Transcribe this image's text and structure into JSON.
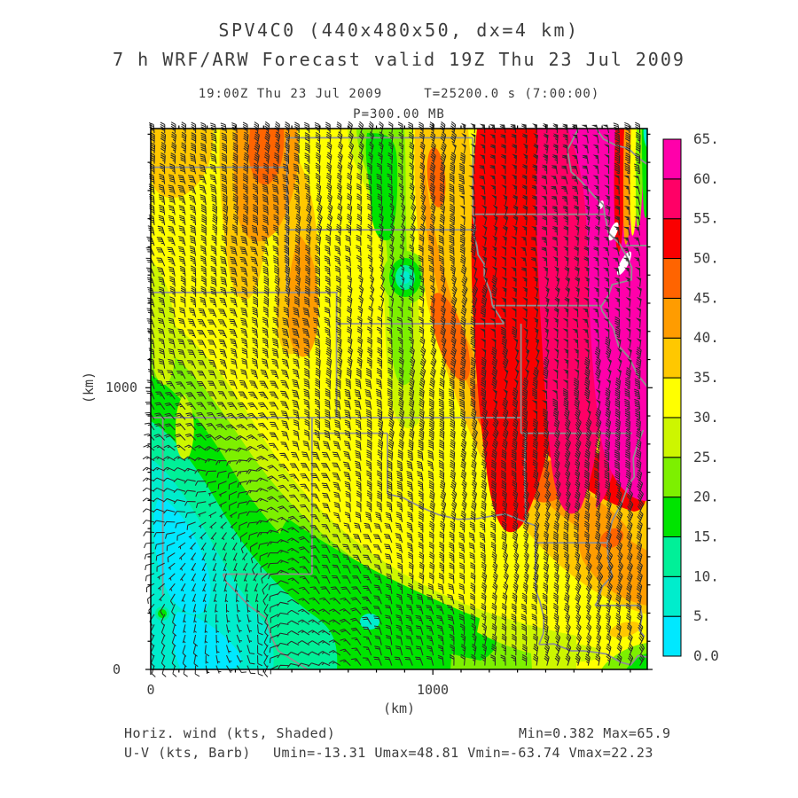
{
  "header": {
    "title": "SPV4C0 (440x480x50, dx=4 km)",
    "subtitle": "7 h WRF/ARW Forecast valid 19Z Thu 23 Jul 2009",
    "time_line": "19:00Z Thu 23 Jul 2009     T=25200.0 s (7:00:00)",
    "level_line": "P=300.00 MB"
  },
  "footer": {
    "shaded_label": "Horiz. wind (kts, Shaded)",
    "shaded_stats": "Min=0.382 Max=65.9",
    "barb_label": "U-V (kts, Barb)",
    "barb_stats": "Umin=-13.31 Umax=48.81 Vmin=-63.74 Vmax=22.23"
  },
  "chart_data": {
    "type": "heatmap",
    "title": "SPV4C0 (440x480x50, dx=4 km)",
    "subtitle": "7 h WRF/ARW Forecast valid 19Z Thu 23 Jul 2009",
    "field": "Horizontal wind speed (kts, shaded) with U-V wind barbs (kts)",
    "model": "WRF/ARW",
    "run_id": "SPV4C0",
    "grid_dims": "440x480x50",
    "dx_km": 4,
    "forecast_hour": 7,
    "valid_time": "19:00Z Thu 23 Jul 2009",
    "t_seconds": 25200.0,
    "t_hms": "7:00:00",
    "pressure_level": "P=300.00 MB",
    "x_axis": {
      "label": "(km)",
      "range_km": [
        0,
        1760
      ],
      "tick_labels": [
        "0",
        "1000"
      ],
      "tick_km": [
        0,
        1000
      ],
      "minor_step_km": 100
    },
    "y_axis": {
      "label": "(km)",
      "range_km": [
        0,
        1920
      ],
      "tick_labels": [
        "0",
        "1000"
      ],
      "tick_km": [
        0,
        1000
      ],
      "minor_step_km": 100
    },
    "stats": {
      "min_kts": 0.382,
      "max_kts": 65.9,
      "umin_kts": -13.31,
      "umax_kts": 48.81,
      "vmin_kts": -63.74,
      "vmax_kts": 22.23
    },
    "colorbar": {
      "units": "kts",
      "levels": [
        0,
        5,
        10,
        15,
        20,
        25,
        30,
        35,
        40,
        45,
        50,
        55,
        60,
        65
      ],
      "labels": [
        "0.0",
        "5.",
        "10.",
        "15.",
        "20.",
        "25.",
        "30.",
        "35.",
        "40.",
        "45.",
        "50.",
        "55.",
        "60.",
        "65."
      ],
      "colors": [
        "#00E8FF",
        "#00EDCC",
        "#00F098",
        "#00E400",
        "#7DF000",
        "#CDF600",
        "#FFFF00",
        "#FFC800",
        "#FF9C00",
        "#FF6400",
        "#FA0000",
        "#FF0066",
        "#FF00AA"
      ]
    },
    "wind_field": {
      "note": "coarse 7x7 sample of the plotted field, row 0 = north/top, speeds kts, directions deg wind-from",
      "cols": 7,
      "rows": 7,
      "speed_kts": [
        [
          37,
          42,
          35,
          22,
          57,
          63,
          30
        ],
        [
          35,
          38,
          36,
          26,
          52,
          62,
          55
        ],
        [
          32,
          36,
          38,
          12,
          48,
          57,
          50
        ],
        [
          22,
          30,
          40,
          43,
          45,
          48,
          44
        ],
        [
          12,
          7,
          28,
          40,
          38,
          37,
          42
        ],
        [
          8,
          4,
          15,
          28,
          33,
          38,
          40
        ],
        [
          10,
          7,
          12,
          18,
          24,
          32,
          26
        ]
      ],
      "dir_from_deg": [
        [
          355,
          0,
          5,
          10,
          0,
          355,
          350
        ],
        [
          350,
          355,
          5,
          10,
          5,
          0,
          355
        ],
        [
          345,
          350,
          0,
          10,
          10,
          5,
          0
        ],
        [
          340,
          330,
          355,
          5,
          10,
          10,
          5
        ],
        [
          300,
          250,
          340,
          0,
          10,
          15,
          10
        ],
        [
          240,
          180,
          320,
          350,
          5,
          15,
          20
        ],
        [
          200,
          150,
          290,
          340,
          0,
          10,
          25
        ]
      ]
    }
  }
}
